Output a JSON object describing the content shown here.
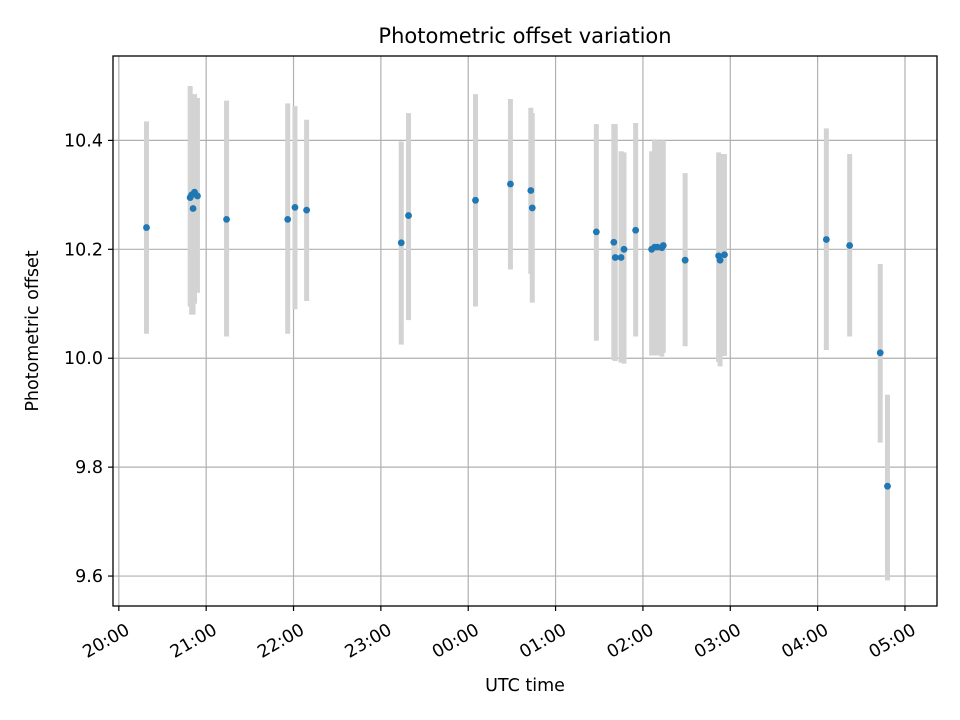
{
  "chart_data": {
    "type": "scatter",
    "title": "Photometric offset variation",
    "xlabel": "UTC time",
    "ylabel": "Photometric offset",
    "grid": true,
    "x_axis": "time",
    "x_tick_labels": [
      "20:00",
      "21:00",
      "22:00",
      "23:00",
      "00:00",
      "01:00",
      "02:00",
      "03:00",
      "04:00",
      "05:00"
    ],
    "y_tick_labels": [
      "9.6",
      "9.8",
      "10.0",
      "10.2",
      "10.4"
    ],
    "xlim": [
      "19:56",
      "05:22"
    ],
    "ylim": [
      9.545,
      10.555
    ],
    "colors": {
      "point": "#1f77b4",
      "errorbar": "#d3d3d3",
      "grid": "#b0b0b0"
    },
    "points": [
      {
        "x": "20:19",
        "y": 10.24,
        "ylo": 10.045,
        "yhi": 10.435
      },
      {
        "x": "20:49",
        "y": 10.295,
        "ylo": 10.095,
        "yhi": 10.5
      },
      {
        "x": "20:50",
        "y": 10.3,
        "ylo": 10.08,
        "yhi": 10.475
      },
      {
        "x": "20:51",
        "y": 10.275,
        "ylo": 10.08,
        "yhi": 10.475
      },
      {
        "x": "20:52",
        "y": 10.305,
        "ylo": 10.1,
        "yhi": 10.485
      },
      {
        "x": "20:54",
        "y": 10.298,
        "ylo": 10.12,
        "yhi": 10.478
      },
      {
        "x": "21:14",
        "y": 10.255,
        "ylo": 10.04,
        "yhi": 10.473
      },
      {
        "x": "21:56",
        "y": 10.255,
        "ylo": 10.045,
        "yhi": 10.468
      },
      {
        "x": "22:01",
        "y": 10.277,
        "ylo": 10.09,
        "yhi": 10.463
      },
      {
        "x": "22:09",
        "y": 10.272,
        "ylo": 10.105,
        "yhi": 10.438
      },
      {
        "x": "23:14",
        "y": 10.212,
        "ylo": 10.025,
        "yhi": 10.398
      },
      {
        "x": "23:19",
        "y": 10.262,
        "ylo": 10.07,
        "yhi": 10.45
      },
      {
        "x": "00:05",
        "y": 10.29,
        "ylo": 10.095,
        "yhi": 10.485
      },
      {
        "x": "00:29",
        "y": 10.32,
        "ylo": 10.163,
        "yhi": 10.476
      },
      {
        "x": "00:43",
        "y": 10.308,
        "ylo": 10.155,
        "yhi": 10.46
      },
      {
        "x": "00:44",
        "y": 10.276,
        "ylo": 10.102,
        "yhi": 10.45
      },
      {
        "x": "01:28",
        "y": 10.232,
        "ylo": 10.032,
        "yhi": 10.43
      },
      {
        "x": "01:40",
        "y": 10.213,
        "ylo": 9.997,
        "yhi": 10.43
      },
      {
        "x": "01:41",
        "y": 10.185,
        "ylo": 9.995,
        "yhi": 10.43
      },
      {
        "x": "01:45",
        "y": 10.185,
        "ylo": 9.992,
        "yhi": 10.38
      },
      {
        "x": "01:47",
        "y": 10.2,
        "ylo": 9.99,
        "yhi": 10.378
      },
      {
        "x": "01:55",
        "y": 10.235,
        "ylo": 10.04,
        "yhi": 10.432
      },
      {
        "x": "02:06",
        "y": 10.2,
        "ylo": 10.005,
        "yhi": 10.38
      },
      {
        "x": "02:08",
        "y": 10.204,
        "ylo": 10.005,
        "yhi": 10.402
      },
      {
        "x": "02:10",
        "y": 10.204,
        "ylo": 10.005,
        "yhi": 10.4
      },
      {
        "x": "02:13",
        "y": 10.203,
        "ylo": 10.003,
        "yhi": 10.398
      },
      {
        "x": "02:14",
        "y": 10.207,
        "ylo": 10.01,
        "yhi": 10.4
      },
      {
        "x": "02:29",
        "y": 10.18,
        "ylo": 10.022,
        "yhi": 10.34
      },
      {
        "x": "02:52",
        "y": 10.188,
        "ylo": 9.993,
        "yhi": 10.378
      },
      {
        "x": "02:53",
        "y": 10.18,
        "ylo": 9.985,
        "yhi": 10.375
      },
      {
        "x": "02:56",
        "y": 10.19,
        "ylo": 10.004,
        "yhi": 10.375
      },
      {
        "x": "04:06",
        "y": 10.218,
        "ylo": 10.015,
        "yhi": 10.422
      },
      {
        "x": "04:22",
        "y": 10.207,
        "ylo": 10.04,
        "yhi": 10.375
      },
      {
        "x": "04:43",
        "y": 10.01,
        "ylo": 9.845,
        "yhi": 10.173
      },
      {
        "x": "04:48",
        "y": 9.765,
        "ylo": 9.592,
        "yhi": 9.933
      }
    ]
  }
}
